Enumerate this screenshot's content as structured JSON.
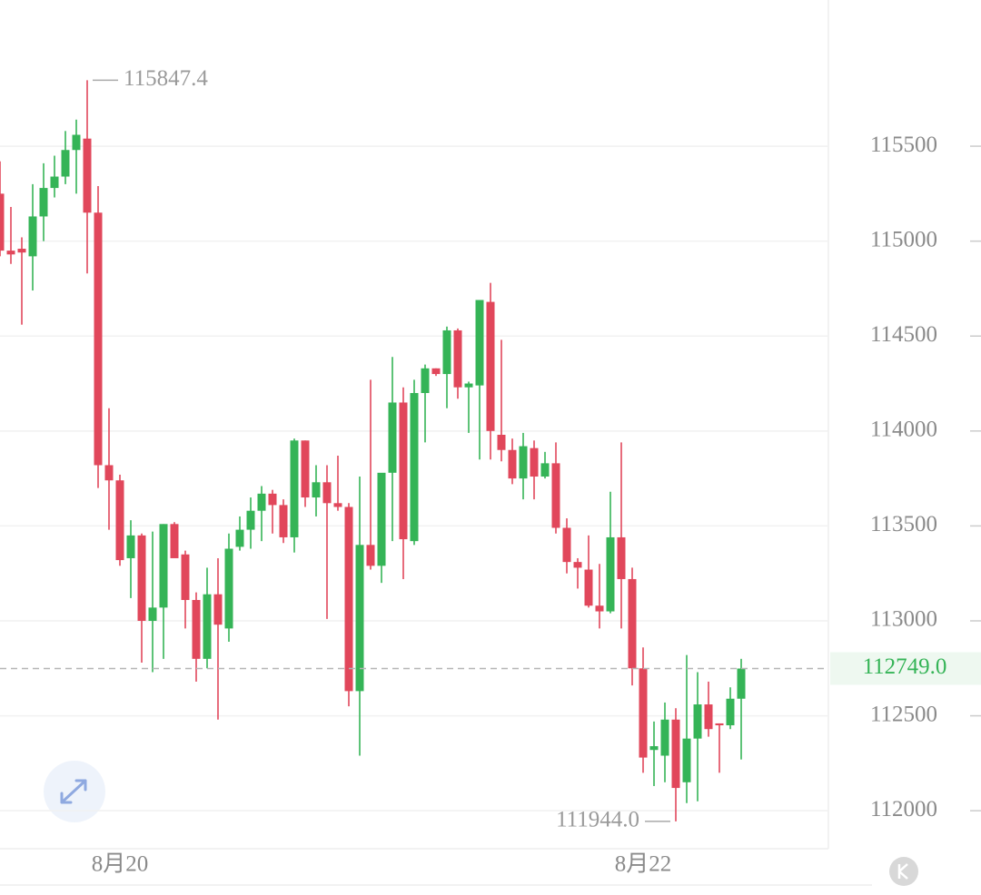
{
  "chart_data": {
    "type": "candlestick",
    "categories": [
      null,
      null,
      null,
      null,
      null,
      null,
      null,
      null,
      null,
      null,
      null,
      "8月20",
      null,
      null,
      null,
      null,
      null,
      null,
      null,
      null,
      null,
      null,
      null,
      null,
      null,
      null,
      null,
      null,
      null,
      null,
      null,
      null,
      null,
      null,
      null,
      null,
      null,
      null,
      null,
      null,
      null,
      null,
      null,
      null,
      null,
      null,
      null,
      null,
      null,
      null,
      null,
      null,
      null,
      null,
      null,
      null,
      null,
      null,
      null,
      "8月22",
      null,
      null,
      null,
      null,
      null,
      null,
      null,
      null,
      null
    ],
    "open": [
      115250,
      114950,
      114960,
      114920,
      115130,
      115280,
      115340,
      115480,
      115540,
      115150,
      113820,
      113740,
      113330,
      113450,
      113000,
      113070,
      113510,
      113350,
      113110,
      112800,
      113140,
      112960,
      113390,
      113480,
      113580,
      113670,
      113610,
      113440,
      113950,
      113650,
      113730,
      113620,
      113600,
      112630,
      113400,
      113290,
      113780,
      114150,
      113420,
      114200,
      114330,
      114300,
      114530,
      114230,
      114240,
      114680,
      113980,
      113900,
      113750,
      113910,
      113760,
      113830,
      113490,
      113310,
      113270,
      113080,
      113050,
      113440,
      113220,
      112750,
      112320,
      112290,
      112480,
      112150,
      112380,
      112560,
      112460,
      112450,
      112590
    ],
    "high": [
      115420,
      115180,
      115020,
      115300,
      115410,
      115450,
      115580,
      115640,
      115847.4,
      115290,
      114120,
      113770,
      113530,
      113460,
      113470,
      113510,
      113520,
      113370,
      113150,
      113280,
      113330,
      113460,
      113550,
      113650,
      113710,
      113690,
      113640,
      113960,
      113950,
      113820,
      113820,
      113870,
      113620,
      113760,
      114270,
      113760,
      114390,
      114230,
      114270,
      114350,
      114330,
      114550,
      114540,
      114260,
      114690,
      114780,
      114480,
      113960,
      113990,
      113950,
      113890,
      113940,
      113540,
      113330,
      113450,
      113300,
      113680,
      113940,
      113280,
      112860,
      112470,
      112570,
      112540,
      112820,
      112730,
      112680,
      112460,
      112650,
      112800
    ],
    "low": [
      114920,
      114880,
      114560,
      114740,
      115000,
      115230,
      115300,
      115250,
      114830,
      113700,
      113480,
      113290,
      113120,
      112780,
      112730,
      112800,
      113350,
      112960,
      112680,
      112750,
      112480,
      112890,
      113370,
      113380,
      113420,
      113460,
      113410,
      113360,
      113600,
      113550,
      113010,
      113580,
      112550,
      112290,
      113270,
      113200,
      113420,
      113220,
      113400,
      113940,
      114290,
      114120,
      114170,
      113990,
      113850,
      113850,
      113840,
      113720,
      113640,
      113640,
      113750,
      113460,
      113250,
      113170,
      113070,
      112960,
      113040,
      112960,
      112660,
      112200,
      112130,
      112150,
      111944,
      112040,
      112050,
      112390,
      112200,
      112430,
      112270
    ],
    "close": [
      114950,
      114930,
      114940,
      115130,
      115280,
      115340,
      115480,
      115560,
      115150,
      113820,
      113740,
      113320,
      113450,
      113000,
      113070,
      113510,
      113330,
      113110,
      112800,
      113140,
      112980,
      113380,
      113480,
      113580,
      113670,
      113610,
      113440,
      113950,
      113650,
      113730,
      113620,
      113600,
      112630,
      113400,
      113290,
      113780,
      114150,
      113430,
      114200,
      114330,
      114300,
      114530,
      114230,
      114250,
      114690,
      114000,
      113900,
      113750,
      113920,
      113760,
      113830,
      113490,
      113310,
      113280,
      113080,
      113050,
      113440,
      113220,
      112750,
      112280,
      112340,
      112480,
      112120,
      112380,
      112560,
      112430,
      112450,
      112590,
      112749
    ],
    "up_color": "#35b457",
    "down_color": "#e1475b",
    "ylim": [
      111800,
      116270
    ],
    "yticks": [
      112000,
      112500,
      113000,
      113500,
      114000,
      114500,
      115000,
      115500
    ],
    "grid": true,
    "max_label": {
      "value": 115847.4,
      "label": "115847.4"
    },
    "min_label": {
      "value": 111944,
      "label": "111944.0"
    },
    "last_price": {
      "value": 112749,
      "label": "112749.0"
    }
  }
}
